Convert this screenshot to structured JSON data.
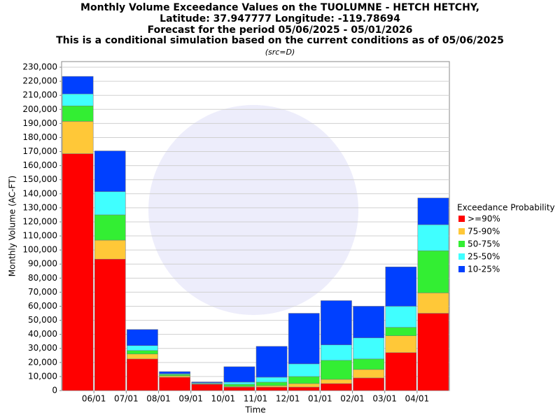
{
  "chart_data": {
    "type": "stacked_bar",
    "title": [
      "Monthly Volume Exceedance Values on the TUOLUMNE - HETCH HETCHY,",
      "Latitude: 37.947777 Longitude: -119.78694",
      "Forecast for the period 05/06/2025 - 05/01/2026",
      "This is a conditional simulation based on the current conditions as of 05/06/2025"
    ],
    "subtitle": "(src=D)",
    "ylabel": "Monthly Volume (AC-FT)",
    "xlabel": "Time",
    "legend_title": "Exceedance Probability",
    "legend_position": "right",
    "grid": true,
    "categories": [
      null,
      null,
      null,
      null,
      null,
      null,
      null,
      null,
      null,
      null,
      null,
      null
    ],
    "boundary_labels": [
      "06/01",
      "07/01",
      "08/01",
      "09/01",
      "10/01",
      "11/01",
      "12/01",
      "01/01",
      "02/01",
      "03/01",
      "04/01"
    ],
    "ylim": [
      0,
      234000
    ],
    "yticks": [
      0,
      {
        "value": 10000,
        "label": "10,000"
      },
      {
        "value": 20000,
        "label": "20,000"
      },
      {
        "value": 30000,
        "label": "30,000"
      },
      {
        "value": 40000,
        "label": "40,000"
      },
      {
        "value": 50000,
        "label": "50,000"
      },
      {
        "value": 60000,
        "label": "60,000"
      },
      {
        "value": 70000,
        "label": "70,000"
      },
      {
        "value": 80000,
        "label": "80,000"
      },
      {
        "value": 90000,
        "label": "90,000"
      },
      {
        "value": 100000,
        "label": "100,000"
      },
      {
        "value": 110000,
        "label": "110,000"
      },
      {
        "value": 120000,
        "label": "120,000"
      },
      {
        "value": 130000,
        "label": "130,000"
      },
      {
        "value": 140000,
        "label": "140,000"
      },
      {
        "value": 150000,
        "label": "150,000"
      },
      {
        "value": 160000,
        "label": "160,000"
      },
      {
        "value": 170000,
        "label": "170,000"
      },
      {
        "value": 180000,
        "label": "180,000"
      },
      {
        "value": 190000,
        "label": "190,000"
      },
      {
        "value": 200000,
        "label": "200,000"
      },
      {
        "value": 210000,
        "label": "210,000"
      },
      {
        "value": 220000,
        "label": "220,000"
      },
      {
        "value": 230000,
        "label": "230,000"
      }
    ],
    "series": [
      {
        "name": ">=90%",
        "color": "#ff0000",
        "values": [
          168500,
          93500,
          22500,
          9500,
          4500,
          2500,
          2500,
          2500,
          5000,
          9000,
          27000,
          55000
        ]
      },
      {
        "name": "75-90%",
        "color": "#ffc838",
        "values": [
          23000,
          13500,
          3500,
          1000,
          300,
          500,
          1000,
          2500,
          3000,
          6000,
          12000,
          14500
        ]
      },
      {
        "name": "50-75%",
        "color": "#33ee33",
        "values": [
          11000,
          18000,
          2500,
          1000,
          300,
          1500,
          2500,
          5000,
          13500,
          7500,
          6000,
          30000
        ]
      },
      {
        "name": "25-50%",
        "color": "#40ffff",
        "values": [
          8500,
          16500,
          3500,
          500,
          500,
          1500,
          3500,
          9000,
          11000,
          15000,
          15000,
          18500
        ]
      },
      {
        "name": "10-25%",
        "color": "#0040ff",
        "values": [
          12500,
          29000,
          11500,
          1500,
          600,
          11000,
          22000,
          36000,
          31500,
          22500,
          28000,
          19000
        ]
      }
    ]
  }
}
